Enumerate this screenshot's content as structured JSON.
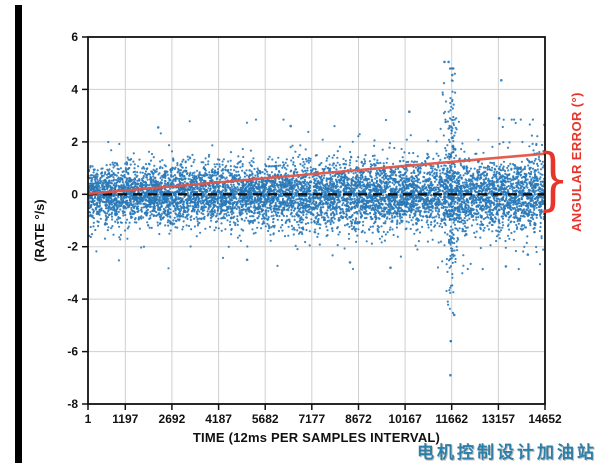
{
  "watermark": {
    "text": "电机控制设计加油站",
    "color": "#2e7fa8"
  },
  "chart_data": {
    "type": "scatter",
    "title": "",
    "xlabel": "TIME (12ms PER SAMPLES INTERVAL)",
    "ylabel": "(RATE °/s)",
    "xlim": [
      1,
      14652
    ],
    "ylim": [
      -8,
      6
    ],
    "x_ticks": [
      1,
      1197,
      2692,
      4187,
      5682,
      7177,
      8672,
      10167,
      11662,
      13157,
      14652
    ],
    "y_ticks": [
      -8,
      -6,
      -4,
      -2,
      0,
      2,
      4,
      6
    ],
    "grid": true,
    "colors": {
      "scatter": "#2979b8",
      "zero_line": "#111111",
      "error_line": "#e05548",
      "annotation": "#e8352c",
      "grid": "#cfcfcf",
      "frame": "#111111"
    },
    "series": [
      {
        "name": "rate-noise-scatter",
        "type": "scatter",
        "color": "#2979b8"
      },
      {
        "name": "zero-reference",
        "type": "dashed-line",
        "y": 0,
        "color": "#111111"
      },
      {
        "name": "angular-error-trend",
        "type": "line",
        "color": "#e05548",
        "points": [
          [
            1,
            0.02
          ],
          [
            14652,
            1.55
          ]
        ]
      }
    ],
    "annotations": {
      "angular_error_label": "ANGULAR ERROR (°)",
      "brace": "}"
    },
    "scatter_generator": {
      "seed": 42,
      "n_base": 8000,
      "sd_start": 0.5,
      "sd_end": 0.68,
      "tail_fraction": 0.08,
      "tail_multiplier": 2.0,
      "clamp": 2.85,
      "clusters": [
        {
          "x_center": 11640,
          "x_sd": 150,
          "n": 170,
          "y_sd": 1.9,
          "y_min": -4.8,
          "y_max": 4.6
        },
        {
          "x_center": 11662,
          "x_sd": 30,
          "n": 70,
          "y_sd": 2.8,
          "y_min": -5.6,
          "y_max": 4.8
        }
      ],
      "notable_points": [
        [
          11430,
          5.05
        ],
        [
          11560,
          5.05
        ],
        [
          11620,
          -6.9
        ],
        [
          11680,
          4.55
        ],
        [
          11740,
          -4.6
        ],
        [
          13250,
          4.35
        ],
        [
          13180,
          2.9
        ],
        [
          13400,
          -2.75
        ],
        [
          14100,
          -2.3
        ],
        [
          10300,
          3.15
        ],
        [
          9700,
          -2.8
        ],
        [
          8400,
          -2.6
        ],
        [
          2250,
          2.55
        ],
        [
          5100,
          -2.5
        ],
        [
          6500,
          2.6
        ]
      ]
    }
  }
}
